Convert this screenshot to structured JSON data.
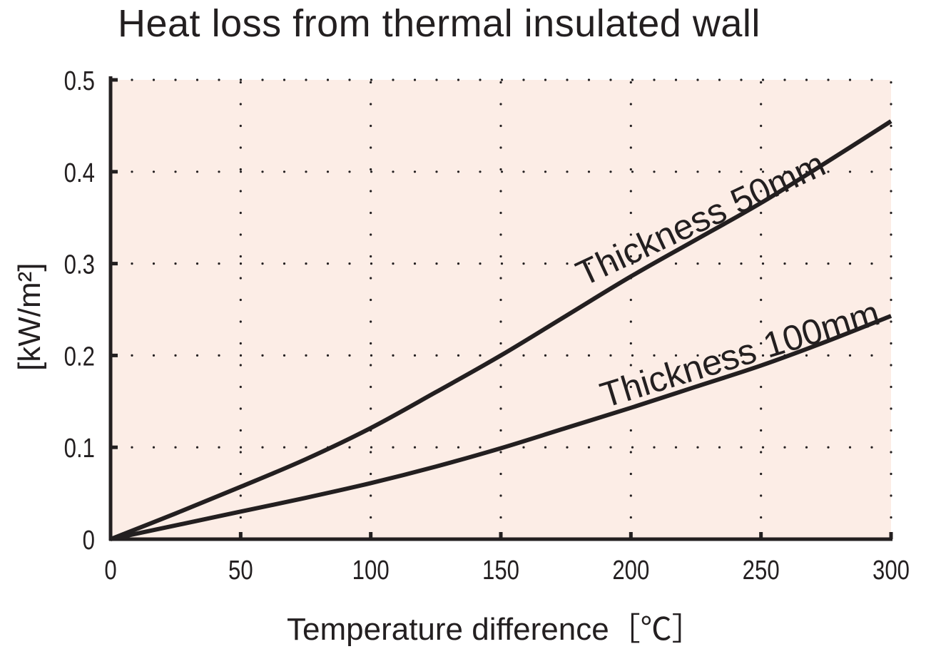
{
  "chart_data": {
    "type": "line",
    "title": "Heat loss from thermal insulated wall",
    "xlabel": "Temperature difference［℃］",
    "ylabel": "[kW/m²]",
    "xlim": [
      0,
      300
    ],
    "ylim": [
      0,
      0.5
    ],
    "xticks": [
      "0",
      "50",
      "100",
      "150",
      "200",
      "250",
      "300"
    ],
    "yticks": [
      "0",
      "0.1",
      "0.2",
      "0.3",
      "0.4",
      "0.5"
    ],
    "grid": "dotted",
    "background_color": "#fcede6",
    "line_color": "#231f20",
    "x": [
      0,
      25,
      50,
      75,
      100,
      125,
      150,
      175,
      200,
      225,
      250,
      275,
      300
    ],
    "series": [
      {
        "name": "Thickness 50mm",
        "values": [
          0,
          0.028,
          0.057,
          0.087,
          0.121,
          0.16,
          0.2,
          0.243,
          0.286,
          0.326,
          0.366,
          0.41,
          0.455
        ]
      },
      {
        "name": "Thickness 100mm",
        "values": [
          0,
          0.015,
          0.03,
          0.045,
          0.061,
          0.079,
          0.099,
          0.121,
          0.143,
          0.166,
          0.189,
          0.215,
          0.243
        ]
      }
    ]
  }
}
